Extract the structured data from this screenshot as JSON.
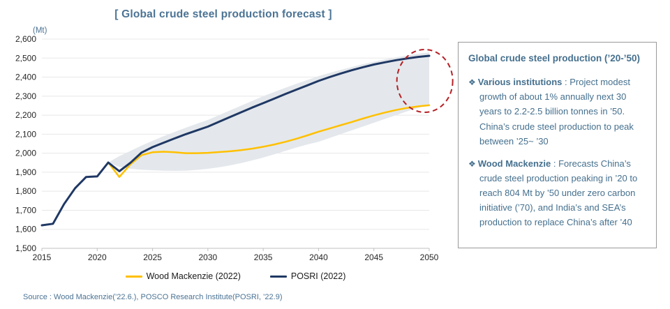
{
  "title": "[ Global crude steel production forecast ]",
  "source": "Source : Wood Mackenzie(’22.6.), POSCO Research Institute(POSRI, ’22.9)",
  "chart_data": {
    "type": "line",
    "unit_label": "(Mt)",
    "xlim": [
      2015,
      2050
    ],
    "ylim": [
      1500,
      2600
    ],
    "x_ticks": [
      2015,
      2020,
      2025,
      2030,
      2035,
      2040,
      2045,
      2050
    ],
    "y_ticks": [
      1500,
      1600,
      1700,
      1800,
      1900,
      2000,
      2100,
      2200,
      2300,
      2400,
      2500,
      2600
    ],
    "grid": "horizontal",
    "legend_position": "bottom-center",
    "series": [
      {
        "name": "Wood Mackenzie (2022)",
        "color": "#FFC000",
        "x_start": 2021,
        "values": [
          1951,
          1875,
          1942,
          1990,
          2005,
          2008,
          2005,
          2000,
          2000,
          2002,
          2006,
          2010,
          2016,
          2024,
          2034,
          2046,
          2060,
          2076,
          2094,
          2113,
          2130,
          2147,
          2164,
          2182,
          2199,
          2214,
          2227,
          2238,
          2246,
          2252
        ]
      },
      {
        "name": "POSRI (2022)",
        "color": "#1F3864",
        "x_start": 2015,
        "values": [
          1621,
          1629,
          1732,
          1816,
          1875,
          1878,
          1951,
          1905,
          1950,
          2003,
          2032,
          2055,
          2078,
          2100,
          2120,
          2140,
          2165,
          2190,
          2215,
          2240,
          2263,
          2287,
          2311,
          2334,
          2357,
          2380,
          2400,
          2419,
          2436,
          2452,
          2466,
          2478,
          2489,
          2498,
          2506,
          2512
        ]
      }
    ],
    "band": {
      "name": "forecast-range",
      "color": "#E4E8EC",
      "x_start": 2021,
      "upper": [
        1951,
        1985,
        2012,
        2040,
        2065,
        2090,
        2112,
        2134,
        2155,
        2175,
        2200,
        2225,
        2250,
        2275,
        2300,
        2322,
        2344,
        2365,
        2385,
        2405,
        2422,
        2438,
        2453,
        2468,
        2481,
        2493,
        2504,
        2514,
        2523,
        2530
      ],
      "lower": [
        1951,
        1928,
        1918,
        1913,
        1910,
        1908,
        1907,
        1908,
        1912,
        1918,
        1926,
        1936,
        1948,
        1962,
        1977,
        1994,
        2012,
        2030,
        2046,
        2060,
        2080,
        2100,
        2120,
        2140,
        2160,
        2180,
        2200,
        2220,
        2238,
        2255
      ]
    },
    "highlight_circle": {
      "year": 2049.6,
      "value_top": 2545,
      "value_bottom": 2215,
      "color": "#B42025"
    }
  },
  "info_box": {
    "title": "Global crude steel production (’20-’50)",
    "bullet_glyph": "❖",
    "bullets": [
      {
        "lead": "Various institutions",
        "text": " : Project modest growth of about 1% annually next 30 years to 2.2-2.5 billion tonnes in ’50. China’s crude steel production to peak between ’25~ ’30"
      },
      {
        "lead": "Wood Mackenzie",
        "text": " : Forecasts China’s crude steel production peaking in ’20 to reach 804 Mt by ’50 under zero carbon initiative (’70), and India’s and SEA’s production to replace China’s after ’40"
      }
    ]
  }
}
